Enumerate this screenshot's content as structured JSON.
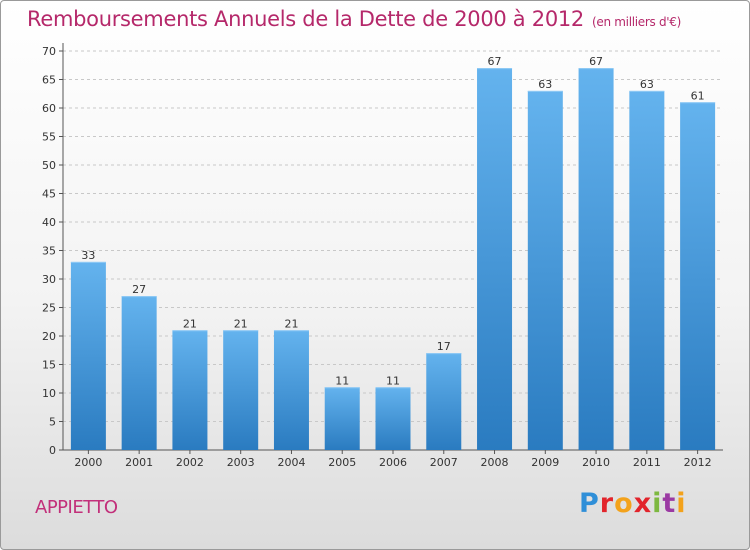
{
  "header": {
    "title": "Remboursements Annuels de la Dette de 2000 à 2012",
    "unit": "(en milliers d'€)"
  },
  "footer": {
    "commune": "APPIETTO",
    "brand": "Proxiti"
  },
  "colors": {
    "title": "#b5286a",
    "bar_top": "#64b3ee",
    "bar_bottom": "#2a7bc0",
    "grid": "#c8c8c8"
  },
  "chart_data": {
    "type": "bar",
    "title": "Remboursements Annuels de la Dette de 2000 à 2012",
    "subtitle": "(en milliers d'€)",
    "categories": [
      "2000",
      "2001",
      "2002",
      "2003",
      "2004",
      "2005",
      "2006",
      "2007",
      "2008",
      "2009",
      "2010",
      "2011",
      "2012"
    ],
    "values": [
      33,
      27,
      21,
      21,
      21,
      11,
      11,
      17,
      67,
      63,
      67,
      63,
      61
    ],
    "ylim": [
      0,
      70
    ],
    "yticks": [
      0,
      5,
      10,
      15,
      20,
      25,
      30,
      35,
      40,
      45,
      50,
      55,
      60,
      65,
      70
    ],
    "grid": true,
    "data_labels": true,
    "xlabel": "",
    "ylabel": ""
  }
}
